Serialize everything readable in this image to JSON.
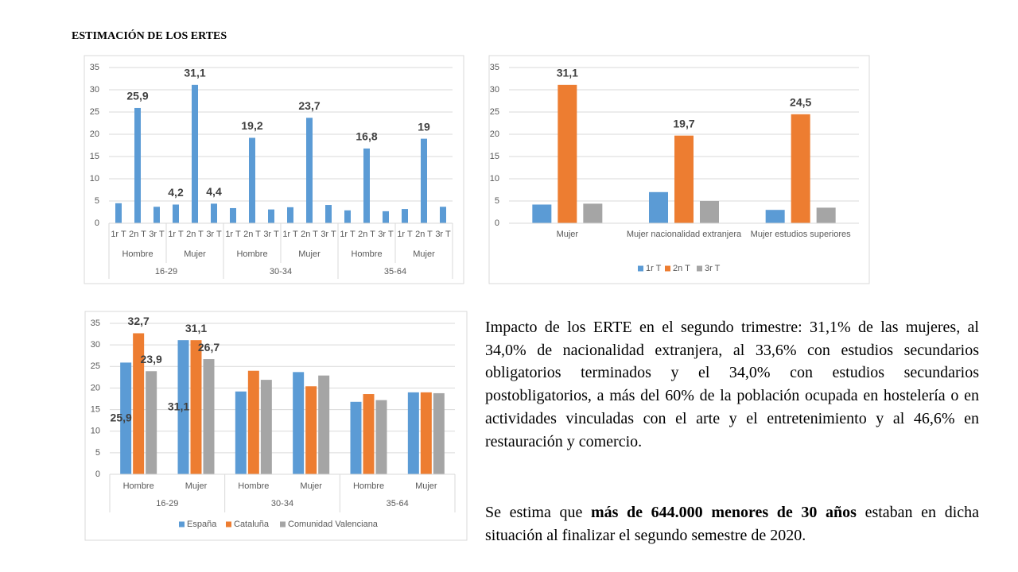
{
  "title": "ESTIMACIÓN DE LOS ERTES",
  "chart_data": [
    {
      "type": "bar",
      "categories": [
        "1r T",
        "2n T",
        "3r T",
        "1r T",
        "2n T",
        "3r T",
        "1r T",
        "2n T",
        "3r T",
        "1r T",
        "2n T",
        "3r T",
        "1r T",
        "2n T",
        "3r T",
        "1r T",
        "2n T",
        "3r T"
      ],
      "groups": [
        "Hombre",
        "Mujer",
        "Hombre",
        "Mujer",
        "Hombre",
        "Mujer"
      ],
      "supergroups": [
        "16-29",
        "30-34",
        "35-64"
      ],
      "values": [
        4.5,
        25.9,
        3.7,
        4.2,
        31.1,
        4.4,
        3.4,
        19.2,
        3.1,
        3.6,
        23.7,
        4.1,
        2.9,
        16.8,
        2.7,
        3.2,
        19,
        3.7
      ],
      "value_labels": [
        null,
        "25,9",
        null,
        "4,2",
        "31,1",
        "4,4",
        null,
        "19,2",
        null,
        null,
        "23,7",
        null,
        null,
        "16,8",
        null,
        null,
        "19",
        null
      ],
      "color": "#5b9bd5",
      "ylim": [
        0,
        35
      ],
      "yticks": [
        0,
        5,
        10,
        15,
        20,
        25,
        30,
        35
      ],
      "grid": true
    },
    {
      "type": "bar",
      "categories": [
        "Mujer",
        "Mujer nacionalidad extranjera",
        "Mujer estudios superiores"
      ],
      "series": [
        {
          "name": "1r T",
          "color": "#5b9bd5",
          "values": [
            4.2,
            7.0,
            3.0
          ]
        },
        {
          "name": "2n T",
          "color": "#ed7d31",
          "values": [
            31.1,
            19.7,
            24.5
          ],
          "value_labels": [
            "31,1",
            "19,7",
            "24,5"
          ]
        },
        {
          "name": "3r T",
          "color": "#a5a5a5",
          "values": [
            4.4,
            5.0,
            3.5
          ]
        }
      ],
      "ylim": [
        0,
        35
      ],
      "yticks": [
        0,
        5,
        10,
        15,
        20,
        25,
        30,
        35
      ],
      "grid": true,
      "legend": "bottom"
    },
    {
      "type": "bar",
      "categories": [
        "Hombre",
        "Mujer",
        "Hombre",
        "Mujer",
        "Hombre",
        "Mujer"
      ],
      "groups": [
        "16-29",
        "30-34",
        "35-64"
      ],
      "series": [
        {
          "name": "España",
          "color": "#5b9bd5",
          "values": [
            25.9,
            31.1,
            19.2,
            23.7,
            16.8,
            19.0
          ],
          "value_labels": [
            "25,9",
            "31,1",
            null,
            null,
            null,
            null
          ]
        },
        {
          "name": "Cataluña",
          "color": "#ed7d31",
          "values": [
            32.7,
            31.1,
            24.0,
            20.4,
            18.6,
            19.0
          ],
          "value_labels": [
            "32,7",
            "31,1",
            null,
            null,
            null,
            null
          ]
        },
        {
          "name": "Comunidad Valenciana",
          "color": "#a5a5a5",
          "values": [
            23.9,
            26.7,
            21.9,
            22.9,
            17.2,
            18.8
          ],
          "value_labels": [
            "23,9",
            "26,7",
            null,
            null,
            null,
            null
          ]
        }
      ],
      "ylim": [
        0,
        35
      ],
      "yticks": [
        0,
        5,
        10,
        15,
        20,
        25,
        30,
        35
      ],
      "grid": true,
      "legend": "bottom"
    }
  ],
  "text": {
    "paragraph1": "Impacto de los ERTE en el segundo trimestre: 31,1% de las mujeres, al 34,0% de nacionalidad extranjera, al 33,6% con estudios secundarios obligatorios terminados y el 34,0% con estudios secundarios postobligatorios, a más del 60% de la población ocupada en hostelería o en actividades vinculadas con el arte y el entretenimiento y al 46,6% en restauración y comercio.",
    "paragraph2": {
      "before": "Se estima que ",
      "bold": "más de 644.000 menores de 30 años",
      "after": " estaban en dicha situación al finalizar el segundo semestre de 2020."
    }
  }
}
